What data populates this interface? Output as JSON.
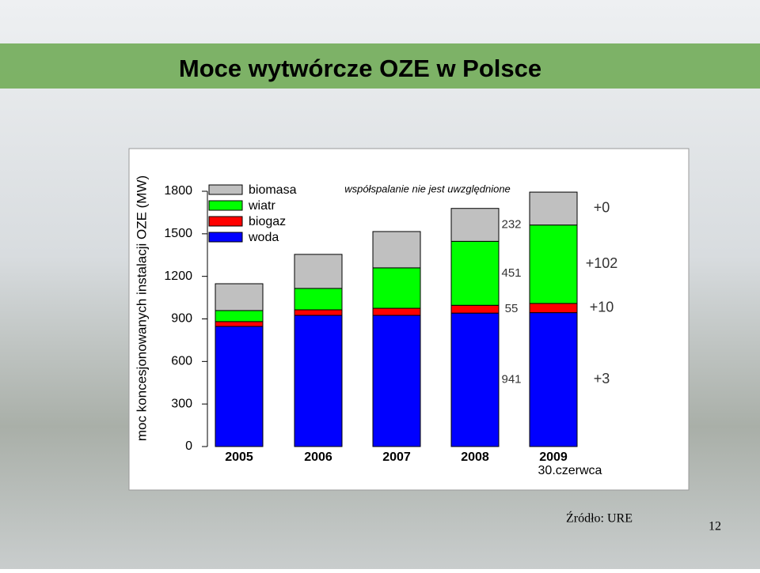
{
  "slide": {
    "title": "Moce wytwórcze OZE w Polsce",
    "source": "Źródło: URE",
    "page_number": "12"
  },
  "chart_data": {
    "type": "stacked_bar",
    "y_label": "moc koncesjonowanych instalacji OZE (MW)",
    "note": "współspalanie nie jest uwzględnione",
    "categories": [
      "2005",
      "2006",
      "2007",
      "2008",
      "2009"
    ],
    "x_sublabel": "30.czerwca",
    "series": [
      {
        "name": "woda",
        "color": "#0000ff",
        "values": [
          847,
          925,
          925,
          941,
          944
        ]
      },
      {
        "name": "biogaz",
        "color": "#ff0000",
        "values": [
          34,
          39,
          50,
          55,
          65
        ]
      },
      {
        "name": "wiatr",
        "color": "#00ff00",
        "values": [
          78,
          151,
          285,
          451,
          553
        ]
      },
      {
        "name": "biomasa",
        "color": "#c0c0c0",
        "values": [
          189,
          240,
          256,
          232,
          232
        ]
      }
    ],
    "annotations": [
      "+3",
      "+10",
      "+102",
      "+0"
    ],
    "ylim": [
      0,
      1800
    ],
    "yticks": [
      0,
      300,
      600,
      900,
      1200,
      1500,
      1800
    ]
  }
}
